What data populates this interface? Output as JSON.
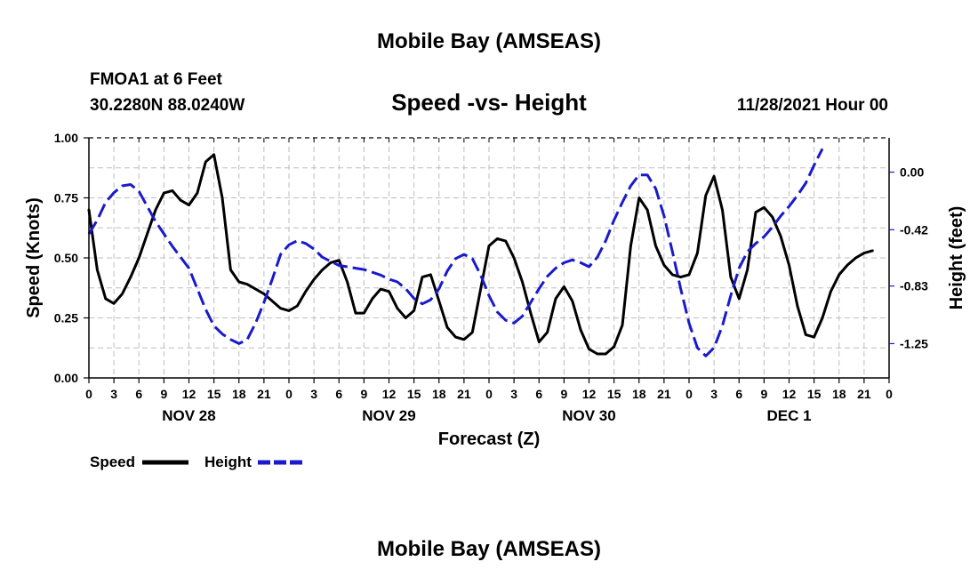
{
  "page_title": "Mobile Bay (AMSEAS)",
  "station": "FMOA1 at 6 Feet",
  "location": "30.2280N  88.0240W",
  "datetime": "11/28/2021 Hour 00",
  "footer_title": "Mobile Bay (AMSEAS)",
  "chart_data": {
    "type": "line",
    "title": "Speed -vs- Height",
    "xlabel": "Forecast (Z)",
    "ylabel_left": "Speed (Knots)",
    "ylabel_right": "Height (feet)",
    "x_range_hours": [
      0,
      96
    ],
    "x_tick_labels": [
      "0",
      "3",
      "6",
      "9",
      "12",
      "15",
      "18",
      "21",
      "0",
      "3",
      "6",
      "9",
      "12",
      "15",
      "18",
      "21",
      "0",
      "3",
      "6",
      "9",
      "12",
      "15",
      "18",
      "21",
      "0",
      "3",
      "6",
      "9",
      "12",
      "15",
      "18",
      "21",
      "0"
    ],
    "day_labels": [
      "NOV 28",
      "NOV 29",
      "NOV 30",
      "DEC 1"
    ],
    "left_axis": {
      "range": [
        0,
        1
      ],
      "ticks": [
        0,
        0.25,
        0.5,
        0.75,
        1
      ],
      "tick_labels": [
        "0.00",
        "0.25",
        "0.50",
        "0.75",
        "1.00"
      ]
    },
    "right_axis": {
      "range": [
        -1.5,
        0.25
      ],
      "ticks": [
        0,
        -0.42,
        -0.83,
        -1.25
      ],
      "tick_labels": [
        "0.00",
        "-0.42",
        "-0.83",
        "-1.25"
      ]
    },
    "grid": true,
    "legend_position": "bottom-left",
    "legend": [
      "Speed",
      "Height"
    ],
    "series": [
      {
        "name": "Speed",
        "axis": "left",
        "color": "#000000",
        "style": "solid",
        "points": [
          [
            0,
            0.7
          ],
          [
            1,
            0.45
          ],
          [
            2,
            0.33
          ],
          [
            3,
            0.31
          ],
          [
            4,
            0.35
          ],
          [
            5,
            0.42
          ],
          [
            6,
            0.5
          ],
          [
            7,
            0.6
          ],
          [
            8,
            0.7
          ],
          [
            9,
            0.77
          ],
          [
            10,
            0.78
          ],
          [
            11,
            0.74
          ],
          [
            12,
            0.72
          ],
          [
            13,
            0.77
          ],
          [
            14,
            0.9
          ],
          [
            15,
            0.93
          ],
          [
            16,
            0.75
          ],
          [
            17,
            0.45
          ],
          [
            18,
            0.4
          ],
          [
            19,
            0.39
          ],
          [
            20,
            0.37
          ],
          [
            21,
            0.35
          ],
          [
            22,
            0.32
          ],
          [
            23,
            0.29
          ],
          [
            24,
            0.28
          ],
          [
            25,
            0.3
          ],
          [
            26,
            0.36
          ],
          [
            27,
            0.41
          ],
          [
            28,
            0.45
          ],
          [
            29,
            0.48
          ],
          [
            30,
            0.49
          ],
          [
            31,
            0.4
          ],
          [
            32,
            0.27
          ],
          [
            33,
            0.27
          ],
          [
            34,
            0.33
          ],
          [
            35,
            0.37
          ],
          [
            36,
            0.36
          ],
          [
            37,
            0.29
          ],
          [
            38,
            0.25
          ],
          [
            39,
            0.28
          ],
          [
            40,
            0.42
          ],
          [
            41,
            0.43
          ],
          [
            42,
            0.32
          ],
          [
            43,
            0.21
          ],
          [
            44,
            0.17
          ],
          [
            45,
            0.16
          ],
          [
            46,
            0.19
          ],
          [
            47,
            0.37
          ],
          [
            48,
            0.55
          ],
          [
            49,
            0.58
          ],
          [
            50,
            0.57
          ],
          [
            51,
            0.5
          ],
          [
            52,
            0.4
          ],
          [
            53,
            0.27
          ],
          [
            54,
            0.15
          ],
          [
            55,
            0.19
          ],
          [
            56,
            0.33
          ],
          [
            57,
            0.38
          ],
          [
            58,
            0.32
          ],
          [
            59,
            0.2
          ],
          [
            60,
            0.12
          ],
          [
            61,
            0.1
          ],
          [
            62,
            0.1
          ],
          [
            63,
            0.13
          ],
          [
            64,
            0.22
          ],
          [
            65,
            0.55
          ],
          [
            66,
            0.75
          ],
          [
            67,
            0.7
          ],
          [
            68,
            0.55
          ],
          [
            69,
            0.47
          ],
          [
            70,
            0.43
          ],
          [
            71,
            0.42
          ],
          [
            72,
            0.43
          ],
          [
            73,
            0.52
          ],
          [
            74,
            0.76
          ],
          [
            75,
            0.84
          ],
          [
            76,
            0.7
          ],
          [
            77,
            0.42
          ],
          [
            78,
            0.33
          ],
          [
            79,
            0.45
          ],
          [
            80,
            0.69
          ],
          [
            81,
            0.71
          ],
          [
            82,
            0.67
          ],
          [
            83,
            0.59
          ],
          [
            84,
            0.47
          ],
          [
            85,
            0.3
          ],
          [
            86,
            0.18
          ],
          [
            87,
            0.17
          ],
          [
            88,
            0.25
          ],
          [
            89,
            0.36
          ],
          [
            90,
            0.43
          ],
          [
            91,
            0.47
          ],
          [
            92,
            0.5
          ],
          [
            93,
            0.52
          ],
          [
            94,
            0.53
          ]
        ]
      },
      {
        "name": "Height",
        "axis": "right",
        "color": "#1a1acc",
        "style": "dashed",
        "points": [
          [
            0,
            -0.45
          ],
          [
            1,
            -0.35
          ],
          [
            2,
            -0.22
          ],
          [
            3,
            -0.15
          ],
          [
            4,
            -0.1
          ],
          [
            5,
            -0.09
          ],
          [
            6,
            -0.14
          ],
          [
            7,
            -0.25
          ],
          [
            8,
            -0.36
          ],
          [
            9,
            -0.45
          ],
          [
            10,
            -0.54
          ],
          [
            11,
            -0.62
          ],
          [
            12,
            -0.7
          ],
          [
            13,
            -0.85
          ],
          [
            14,
            -1.0
          ],
          [
            15,
            -1.12
          ],
          [
            16,
            -1.18
          ],
          [
            17,
            -1.22
          ],
          [
            18,
            -1.25
          ],
          [
            19,
            -1.22
          ],
          [
            20,
            -1.1
          ],
          [
            21,
            -0.95
          ],
          [
            22,
            -0.78
          ],
          [
            23,
            -0.6
          ],
          [
            24,
            -0.53
          ],
          [
            25,
            -0.5
          ],
          [
            26,
            -0.52
          ],
          [
            27,
            -0.56
          ],
          [
            28,
            -0.62
          ],
          [
            29,
            -0.65
          ],
          [
            30,
            -0.68
          ],
          [
            31,
            -0.69
          ],
          [
            32,
            -0.7
          ],
          [
            33,
            -0.71
          ],
          [
            34,
            -0.73
          ],
          [
            35,
            -0.75
          ],
          [
            36,
            -0.78
          ],
          [
            37,
            -0.8
          ],
          [
            38,
            -0.85
          ],
          [
            39,
            -0.92
          ],
          [
            40,
            -0.96
          ],
          [
            41,
            -0.93
          ],
          [
            42,
            -0.85
          ],
          [
            43,
            -0.72
          ],
          [
            44,
            -0.63
          ],
          [
            45,
            -0.6
          ],
          [
            46,
            -0.63
          ],
          [
            47,
            -0.75
          ],
          [
            48,
            -0.9
          ],
          [
            49,
            -1.02
          ],
          [
            50,
            -1.08
          ],
          [
            51,
            -1.1
          ],
          [
            52,
            -1.05
          ],
          [
            53,
            -0.95
          ],
          [
            54,
            -0.85
          ],
          [
            55,
            -0.76
          ],
          [
            56,
            -0.7
          ],
          [
            57,
            -0.66
          ],
          [
            58,
            -0.64
          ],
          [
            59,
            -0.66
          ],
          [
            60,
            -0.69
          ],
          [
            61,
            -0.62
          ],
          [
            62,
            -0.5
          ],
          [
            63,
            -0.35
          ],
          [
            64,
            -0.22
          ],
          [
            65,
            -0.1
          ],
          [
            66,
            -0.02
          ],
          [
            67,
            -0.02
          ],
          [
            68,
            -0.12
          ],
          [
            69,
            -0.32
          ],
          [
            70,
            -0.58
          ],
          [
            71,
            -0.85
          ],
          [
            72,
            -1.1
          ],
          [
            73,
            -1.28
          ],
          [
            74,
            -1.34
          ],
          [
            75,
            -1.28
          ],
          [
            76,
            -1.12
          ],
          [
            77,
            -0.9
          ],
          [
            78,
            -0.7
          ],
          [
            79,
            -0.58
          ],
          [
            80,
            -0.52
          ],
          [
            81,
            -0.47
          ],
          [
            82,
            -0.4
          ],
          [
            83,
            -0.32
          ],
          [
            84,
            -0.25
          ],
          [
            85,
            -0.17
          ],
          [
            86,
            -0.08
          ],
          [
            87,
            0.05
          ],
          [
            88,
            0.17
          ]
        ]
      }
    ]
  }
}
